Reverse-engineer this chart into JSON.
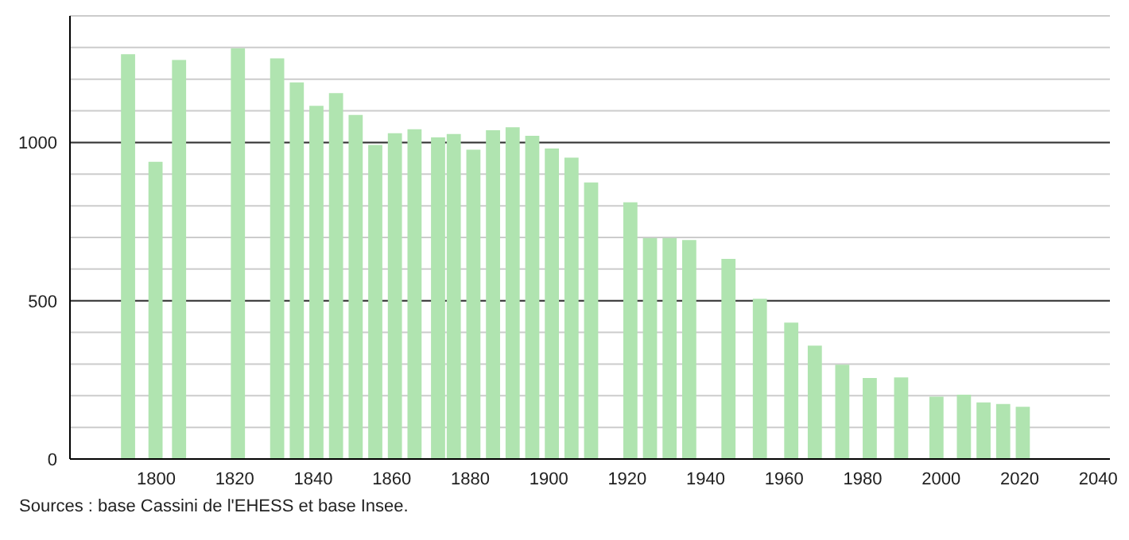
{
  "chart_data": {
    "type": "bar",
    "x": [
      1793,
      1800,
      1806,
      1821,
      1831,
      1836,
      1841,
      1846,
      1851,
      1856,
      1861,
      1866,
      1872,
      1876,
      1881,
      1886,
      1891,
      1896,
      1901,
      1906,
      1911,
      1921,
      1926,
      1931,
      1936,
      1946,
      1954,
      1962,
      1968,
      1975,
      1982,
      1990,
      1999,
      2006,
      2011,
      2016,
      2021
    ],
    "values": [
      1279,
      939,
      1261,
      1298,
      1266,
      1190,
      1116,
      1156,
      1087,
      992,
      1029,
      1042,
      1016,
      1027,
      977,
      1039,
      1048,
      1021,
      981,
      952,
      874,
      811,
      698,
      698,
      692,
      632,
      506,
      431,
      358,
      298,
      256,
      258,
      197,
      203,
      179,
      174,
      165
    ],
    "color": "#b0e4b0",
    "xlim": [
      1778,
      2043
    ],
    "xticks": [
      1800,
      1820,
      1840,
      1860,
      1880,
      1900,
      1920,
      1940,
      1960,
      1980,
      2000,
      2020,
      2040
    ],
    "ylim": [
      0,
      1400
    ],
    "yticks": [
      0,
      {
        "value": 100,
        "label": null
      },
      {
        "value": 200,
        "label": null
      },
      {
        "value": 300,
        "label": null
      },
      {
        "value": 400,
        "label": null
      },
      500,
      {
        "value": 600,
        "label": null
      },
      {
        "value": 700,
        "label": null
      },
      {
        "value": 800,
        "label": null
      },
      {
        "value": 900,
        "label": null
      },
      1000,
      {
        "value": 1100,
        "label": null
      },
      {
        "value": 1200,
        "label": null
      },
      {
        "value": 1300,
        "label": null
      },
      {
        "value": 1400,
        "label": null
      }
    ],
    "grid": "y",
    "annotations": [
      "Sources : base Cassini de l'EHESS et base Insee."
    ]
  }
}
